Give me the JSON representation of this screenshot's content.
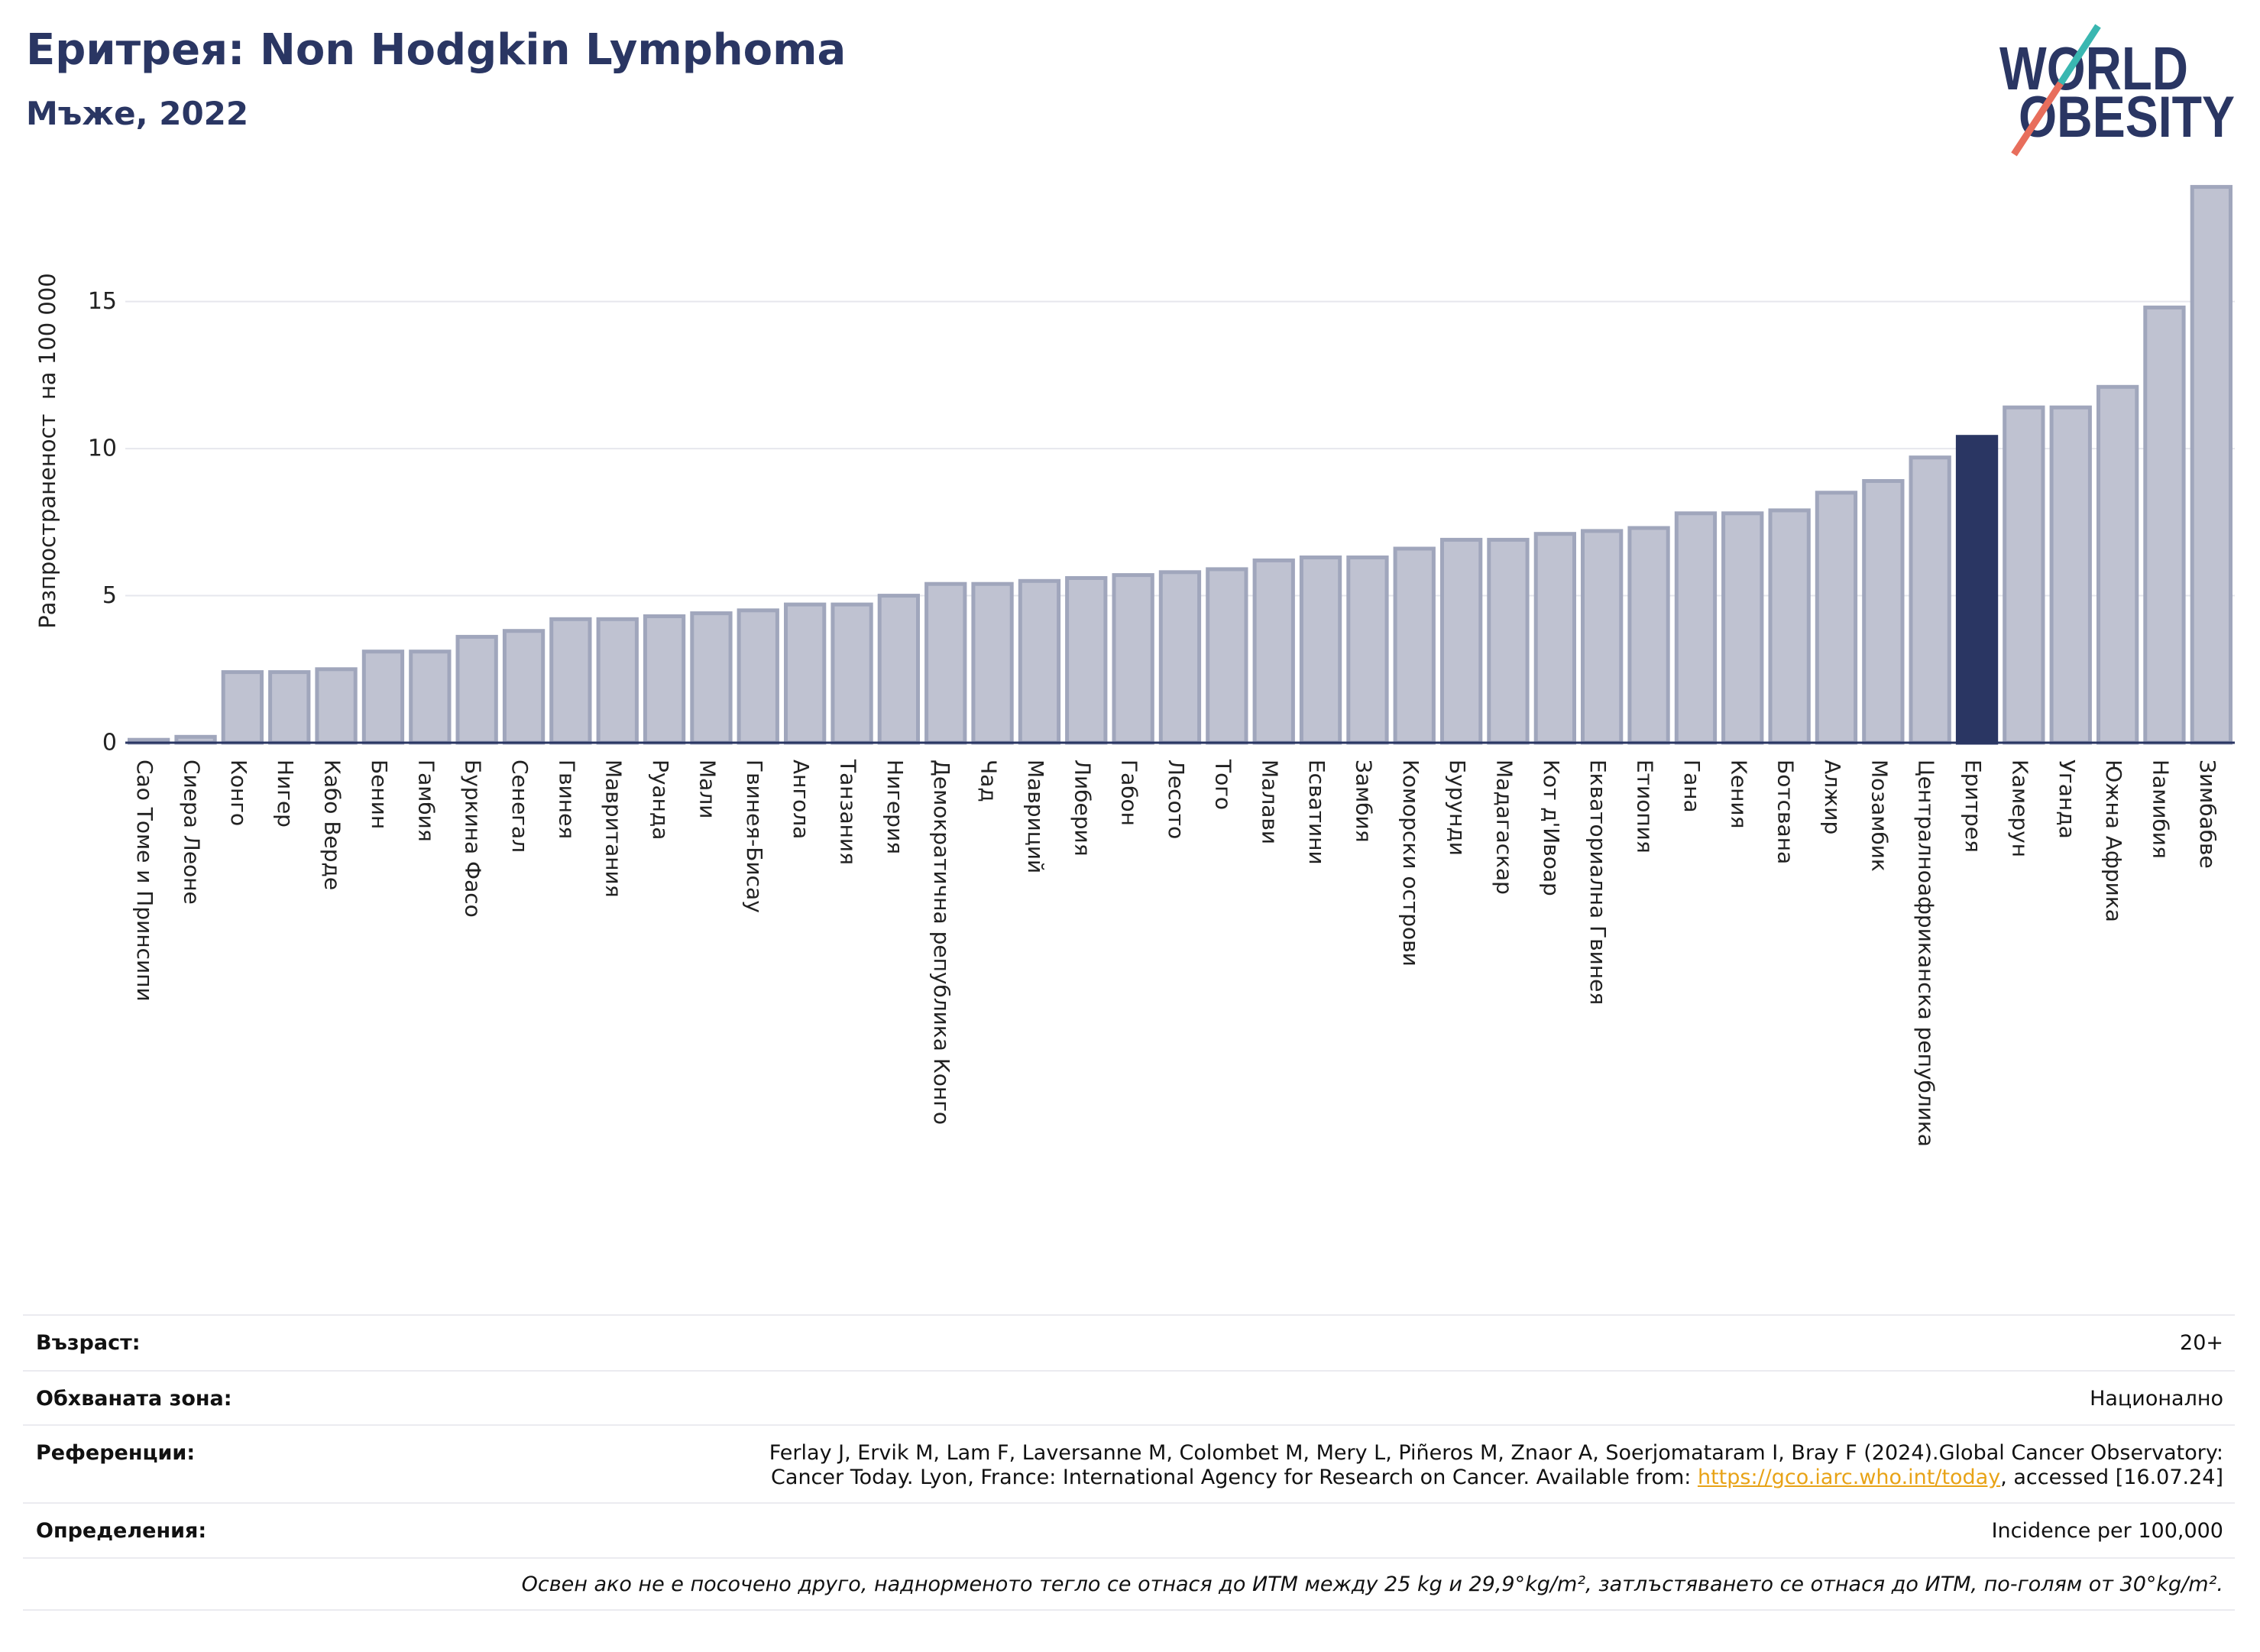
{
  "colors": {
    "primary": "#2a3663",
    "bar": "#bfc2d1",
    "bar_edge": "#a0a6bc",
    "grid": "#e6e7ed",
    "axis_text": "#222222",
    "link": "#e8a317",
    "logo_teal": "#3ab7b1",
    "logo_coral": "#e86e5c",
    "divider": "#ebebf0"
  },
  "logo": {
    "line1": "WORLD",
    "line2": "OBESITY"
  },
  "chart_data": {
    "type": "bar",
    "title": "Еритрея: Non Hodgkin Lymphoma",
    "subtitle": "Мъже, 2022",
    "ylabel": "Разпространеност  на 100 000",
    "categories": [
      "Сао Томе и Принсипи",
      "Сиера Леоне",
      "Конго",
      "Нигер",
      "Кабо Верде",
      "Бенин",
      "Гамбия",
      "Буркина Фасо",
      "Сенегал",
      "Гвинея",
      "Мавритания",
      "Руанда",
      "Мали",
      "Гвинея-Бисау",
      "Ангола",
      "Танзания",
      "Нигерия",
      "Демократична република Конго",
      "Чад",
      "Мавриций",
      "Либерия",
      "Габон",
      "Лесото",
      "Того",
      "Малави",
      "Есватини",
      "Замбия",
      "Коморски острови",
      "Бурунди",
      "Мадагаскар",
      "Кот д'Ивоар",
      "Екваториална Гвинея",
      "Етиопия",
      "Гана",
      "Кения",
      "Ботсвана",
      "Алжир",
      "Мозамбик",
      "Централноафриканска република",
      "Еритрея",
      "Камерун",
      "Уганда",
      "Южна Африка",
      "Намибия",
      "Зимбабве"
    ],
    "values": [
      0.1,
      0.2,
      2.4,
      2.4,
      2.5,
      3.1,
      3.1,
      3.6,
      3.8,
      4.2,
      4.2,
      4.3,
      4.4,
      4.5,
      4.7,
      4.7,
      5.0,
      5.4,
      5.4,
      5.5,
      5.6,
      5.7,
      5.8,
      5.9,
      6.2,
      6.3,
      6.3,
      6.6,
      6.9,
      6.9,
      7.1,
      7.2,
      7.3,
      7.8,
      7.8,
      7.9,
      8.5,
      8.9,
      9.7,
      10.4,
      11.4,
      11.4,
      12.1,
      14.8,
      18.9
    ],
    "highlight": "Еритрея",
    "ylim": [
      0,
      19.85
    ],
    "yticks": [
      0,
      5,
      10,
      15
    ],
    "grid": true
  },
  "info": {
    "age": {
      "label": "Възраст:",
      "value": "20+"
    },
    "coverage": {
      "label": "Обхваната зона:",
      "value": "Национално"
    },
    "references": {
      "label": "Референции:",
      "line1": "Ferlay J, Ervik M, Lam F, Laversanne M, Colombet M, Mery L, Piñeros M, Znaor A, Soerjomataram I, Bray F (2024).Global Cancer Observatory:",
      "line2_before": "Cancer Today. Lyon, France: International Agency for Research on Cancer. Available from: ",
      "link": "https://gco.iarc.who.int/today",
      "line2_after": ", accessed [16.07.24]"
    },
    "definitions": {
      "label": "Определения:",
      "value": "Incidence per 100,000"
    },
    "note": "Освен ако не е посочено друго, наднорменото тегло се отнася до ИТМ между 25 kg и 29,9°kg/m², затлъстяването се отнася до ИТМ, по-голям от 30°kg/m²."
  }
}
